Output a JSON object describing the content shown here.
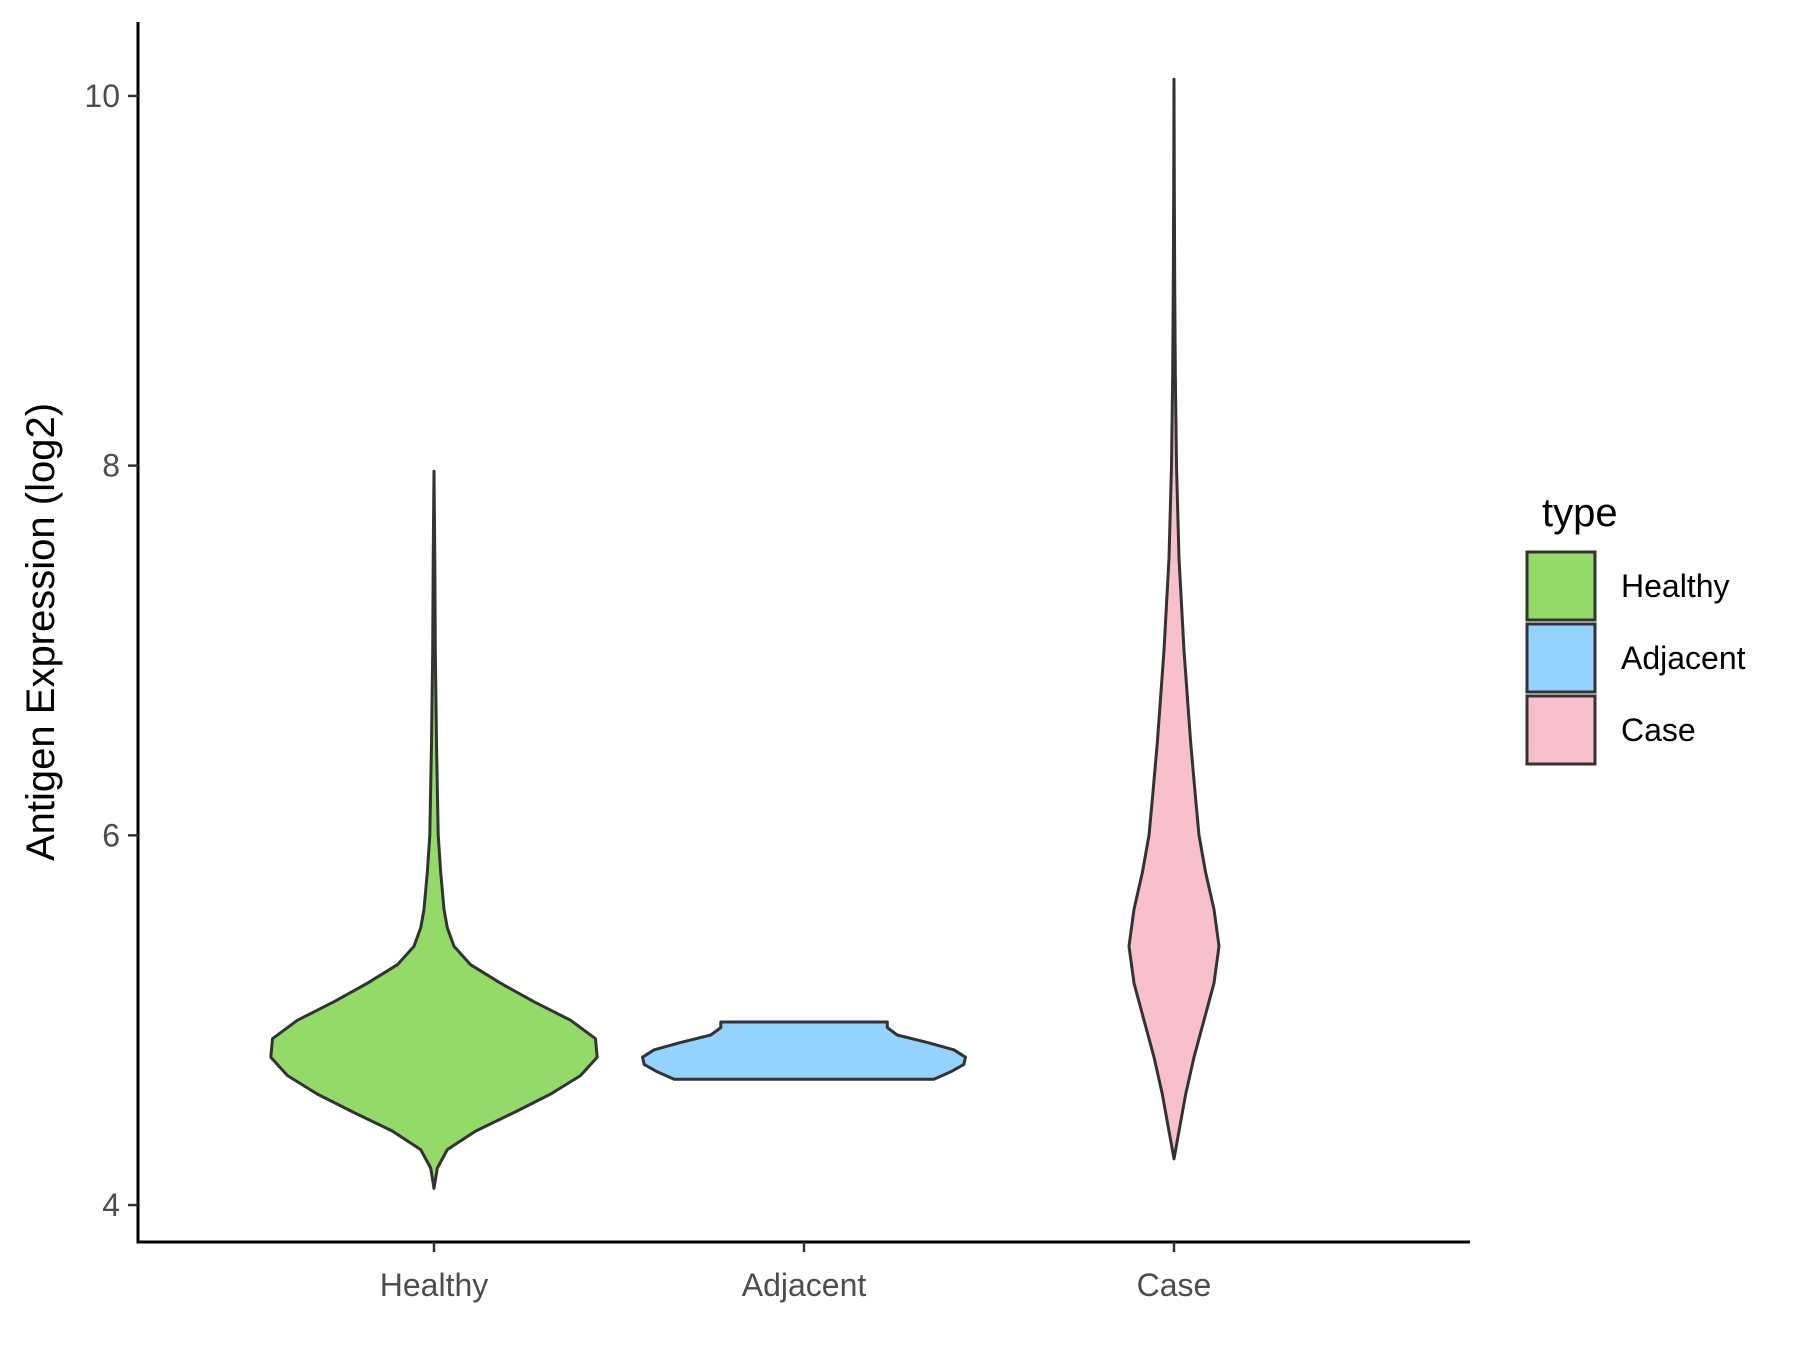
{
  "chart_data": {
    "type": "violin",
    "title": "",
    "xlabel": "",
    "ylabel": "Antigen Expression (log2)",
    "ylim": [
      3.8,
      10.4
    ],
    "yticks": [
      4,
      6,
      8,
      10
    ],
    "categories": [
      "Healthy",
      "Adjacent",
      "Case"
    ],
    "grid": false,
    "legend": {
      "title": "type",
      "placement": "right",
      "entries": [
        "Healthy",
        "Adjacent",
        "Case"
      ]
    },
    "series": [
      {
        "name": "Healthy",
        "color": "#93da69",
        "profile": [
          [
            4.09,
            0.0
          ],
          [
            4.2,
            0.02
          ],
          [
            4.3,
            0.08
          ],
          [
            4.4,
            0.25
          ],
          [
            4.5,
            0.48
          ],
          [
            4.6,
            0.7
          ],
          [
            4.7,
            0.88
          ],
          [
            4.8,
            0.98
          ],
          [
            4.9,
            0.97
          ],
          [
            5.0,
            0.82
          ],
          [
            5.1,
            0.6
          ],
          [
            5.2,
            0.4
          ],
          [
            5.3,
            0.22
          ],
          [
            5.4,
            0.12
          ],
          [
            5.5,
            0.08
          ],
          [
            5.6,
            0.06
          ],
          [
            5.8,
            0.04
          ],
          [
            6.0,
            0.025
          ],
          [
            6.5,
            0.015
          ],
          [
            7.0,
            0.008
          ],
          [
            7.5,
            0.005
          ],
          [
            7.97,
            0.0
          ]
        ]
      },
      {
        "name": "Adjacent",
        "color": "#94d3fe",
        "profile": [
          [
            4.68,
            0.78
          ],
          [
            4.72,
            0.88
          ],
          [
            4.76,
            0.96
          ],
          [
            4.8,
            0.97
          ],
          [
            4.84,
            0.9
          ],
          [
            4.88,
            0.74
          ],
          [
            4.92,
            0.56
          ],
          [
            4.96,
            0.5
          ],
          [
            4.99,
            0.5
          ]
        ]
      },
      {
        "name": "Case",
        "color": "#f7c0cb",
        "profile": [
          [
            4.25,
            0.0
          ],
          [
            4.4,
            0.03
          ],
          [
            4.6,
            0.07
          ],
          [
            4.8,
            0.12
          ],
          [
            5.0,
            0.18
          ],
          [
            5.2,
            0.24
          ],
          [
            5.4,
            0.27
          ],
          [
            5.6,
            0.24
          ],
          [
            5.8,
            0.19
          ],
          [
            6.0,
            0.15
          ],
          [
            6.2,
            0.13
          ],
          [
            6.5,
            0.1
          ],
          [
            7.0,
            0.06
          ],
          [
            7.5,
            0.03
          ],
          [
            8.0,
            0.015
          ],
          [
            8.5,
            0.008
          ],
          [
            9.0,
            0.004
          ],
          [
            9.5,
            0.002
          ],
          [
            10.09,
            0.0
          ]
        ]
      }
    ]
  }
}
